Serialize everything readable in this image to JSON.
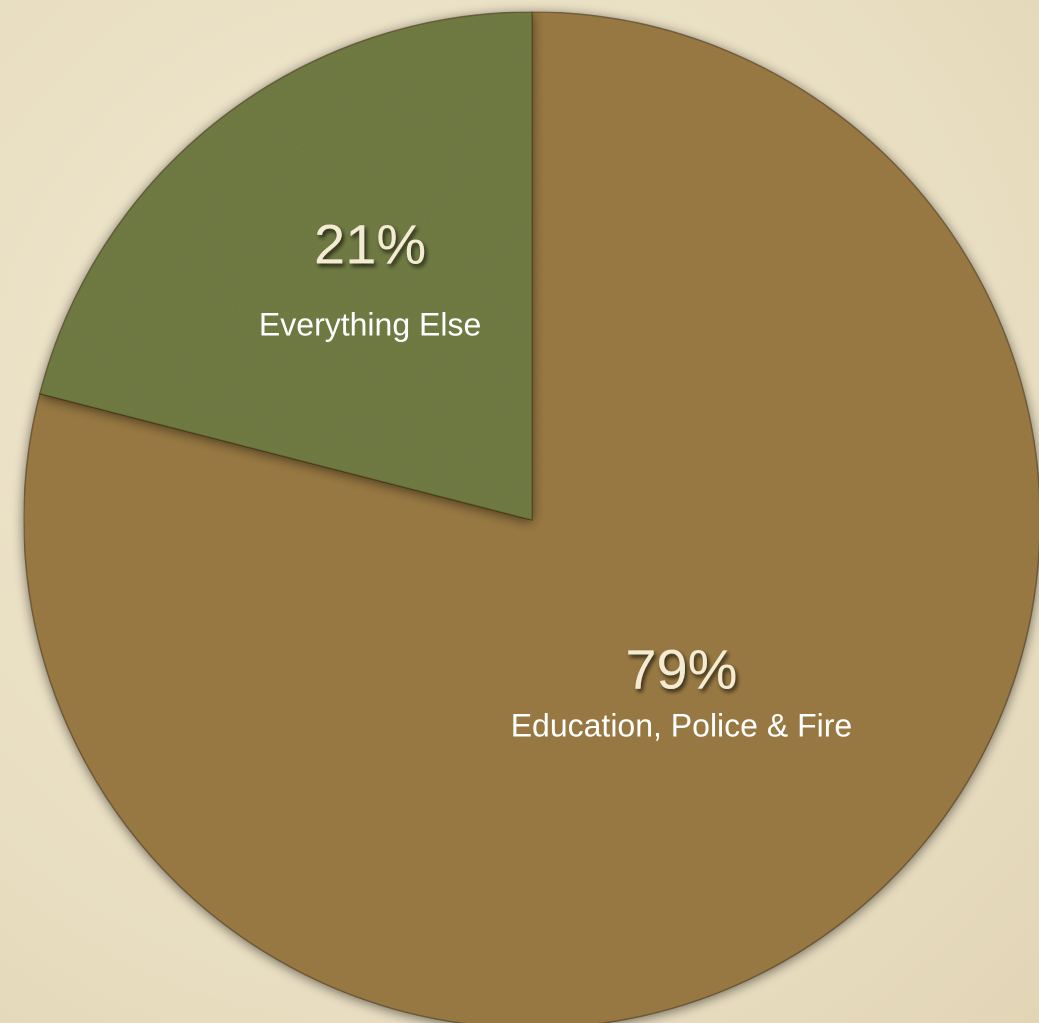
{
  "chart_data": {
    "type": "pie",
    "title": "",
    "slices": [
      {
        "label": "Education, Police & Fire",
        "value": 79,
        "value_label": "79%",
        "color": "#9b7c45"
      },
      {
        "label": "Everything Else",
        "value": 21,
        "value_label": "21%",
        "color": "#727d44"
      }
    ],
    "start": "12 o'clock",
    "direction": "clockwise",
    "legend": "none"
  },
  "colors": {
    "background": "#ece3c9",
    "edge_shadow": "#5a4a2c"
  }
}
